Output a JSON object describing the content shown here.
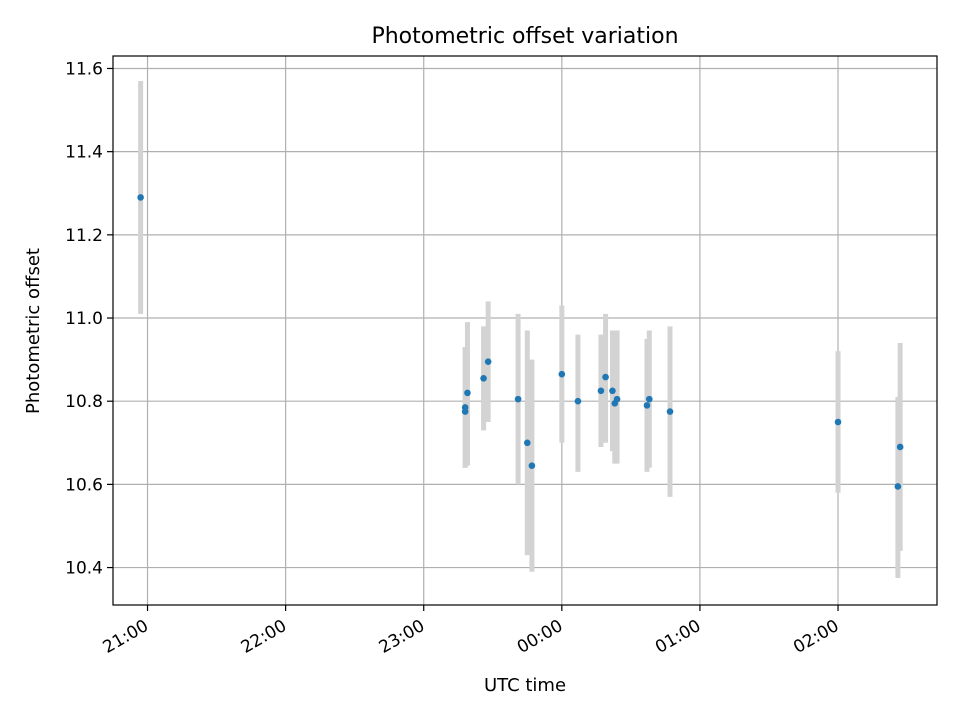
{
  "chart_data": {
    "type": "scatter",
    "title": "Photometric offset variation",
    "xlabel": "UTC time",
    "ylabel": "Photometric offset",
    "x_tick_labels": [
      "21:00",
      "22:00",
      "23:00",
      "00:00",
      "01:00",
      "02:00"
    ],
    "x_tick_times": [
      "21:00",
      "22:00",
      "23:00",
      "00:00",
      "01:00",
      "02:00"
    ],
    "xlim": [
      "20:45",
      "02:43"
    ],
    "y_tick_labels": [
      "10.4",
      "10.6",
      "10.8",
      "11.0",
      "11.2",
      "11.4",
      "11.6"
    ],
    "y_ticks": [
      10.4,
      10.6,
      10.8,
      11.0,
      11.2,
      11.4,
      11.6
    ],
    "ylim": [
      10.31,
      11.63
    ],
    "grid": true,
    "colors": {
      "point": "#1f77b4",
      "errorbar": "#d3d3d3",
      "grid": "#b0b0b0"
    },
    "points": [
      {
        "x": "20:57",
        "y": 11.29,
        "yerr_low": 11.01,
        "yerr_high": 11.57
      },
      {
        "x": "23:18",
        "y": 10.775,
        "yerr_low": 10.64,
        "yerr_high": 10.93
      },
      {
        "x": "23:18",
        "y": 10.785,
        "yerr_low": 10.64,
        "yerr_high": 10.93
      },
      {
        "x": "23:19",
        "y": 10.82,
        "yerr_low": 10.645,
        "yerr_high": 10.99
      },
      {
        "x": "23:26",
        "y": 10.855,
        "yerr_low": 10.73,
        "yerr_high": 10.98
      },
      {
        "x": "23:28",
        "y": 10.895,
        "yerr_low": 10.75,
        "yerr_high": 11.04
      },
      {
        "x": "23:41",
        "y": 10.805,
        "yerr_low": 10.6,
        "yerr_high": 11.01
      },
      {
        "x": "23:45",
        "y": 10.7,
        "yerr_low": 10.43,
        "yerr_high": 10.97
      },
      {
        "x": "23:47",
        "y": 10.645,
        "yerr_low": 10.39,
        "yerr_high": 10.9
      },
      {
        "x": "00:00",
        "y": 10.865,
        "yerr_low": 10.7,
        "yerr_high": 11.03
      },
      {
        "x": "00:07",
        "y": 10.8,
        "yerr_low": 10.63,
        "yerr_high": 10.96
      },
      {
        "x": "00:17",
        "y": 10.825,
        "yerr_low": 10.69,
        "yerr_high": 10.96
      },
      {
        "x": "00:19",
        "y": 10.858,
        "yerr_low": 10.7,
        "yerr_high": 11.01
      },
      {
        "x": "00:22",
        "y": 10.825,
        "yerr_low": 10.68,
        "yerr_high": 10.97
      },
      {
        "x": "00:23",
        "y": 10.795,
        "yerr_low": 10.65,
        "yerr_high": 10.97
      },
      {
        "x": "00:24",
        "y": 10.805,
        "yerr_low": 10.65,
        "yerr_high": 10.97
      },
      {
        "x": "00:37",
        "y": 10.79,
        "yerr_low": 10.63,
        "yerr_high": 10.95
      },
      {
        "x": "00:38",
        "y": 10.805,
        "yerr_low": 10.64,
        "yerr_high": 10.97
      },
      {
        "x": "00:47",
        "y": 10.775,
        "yerr_low": 10.57,
        "yerr_high": 10.98
      },
      {
        "x": "02:00",
        "y": 10.75,
        "yerr_low": 10.58,
        "yerr_high": 10.92
      },
      {
        "x": "02:26",
        "y": 10.595,
        "yerr_low": 10.375,
        "yerr_high": 10.81
      },
      {
        "x": "02:27",
        "y": 10.69,
        "yerr_low": 10.44,
        "yerr_high": 10.94
      }
    ]
  }
}
